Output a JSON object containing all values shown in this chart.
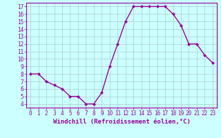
{
  "x": [
    0,
    1,
    2,
    3,
    4,
    5,
    6,
    7,
    8,
    9,
    10,
    11,
    12,
    13,
    14,
    15,
    16,
    17,
    18,
    19,
    20,
    21,
    22,
    23
  ],
  "y": [
    8,
    8,
    7,
    6.5,
    6,
    5,
    5,
    4,
    4,
    5.5,
    9,
    12,
    15,
    17,
    17,
    17,
    17,
    17,
    16,
    14.5,
    12,
    12,
    10.5,
    9.5
  ],
  "xlabel": "Windchill (Refroidissement éolien,°C)",
  "ylim": [
    3.5,
    17.5
  ],
  "xlim": [
    -0.5,
    23.5
  ],
  "yticks": [
    4,
    5,
    6,
    7,
    8,
    9,
    10,
    11,
    12,
    13,
    14,
    15,
    16,
    17
  ],
  "xticks": [
    0,
    1,
    2,
    3,
    4,
    5,
    6,
    7,
    8,
    9,
    10,
    11,
    12,
    13,
    14,
    15,
    16,
    17,
    18,
    19,
    20,
    21,
    22,
    23
  ],
  "line_color": "#990099",
  "marker": "D",
  "marker_size": 2.0,
  "bg_color": "#ccffff",
  "grid_color": "#aacccc",
  "axis_color": "#990099",
  "tick_color": "#990099",
  "label_color": "#990099",
  "xlabel_fontsize": 6.5,
  "tick_fontsize": 5.5,
  "line_width": 1.0
}
